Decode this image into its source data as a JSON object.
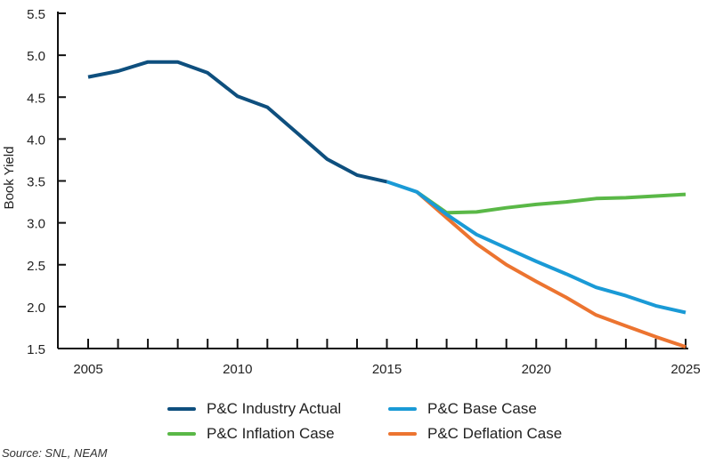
{
  "chart_data": {
    "type": "line",
    "title": "",
    "xlabel": "",
    "ylabel": "Book Yield",
    "xlim": [
      2005,
      2025
    ],
    "ylim": [
      1.5,
      5.5
    ],
    "x_ticks": [
      2005,
      2010,
      2015,
      2020,
      2025
    ],
    "x_tick_labels": [
      "2005",
      "2010",
      "2015",
      "2020",
      "2025"
    ],
    "y_ticks": [
      1.5,
      2.0,
      2.5,
      3.0,
      3.5,
      4.0,
      4.5,
      5.0,
      5.5
    ],
    "y_tick_labels": [
      "1.5",
      "2.0",
      "2.5",
      "3.0",
      "3.5",
      "4.0",
      "4.5",
      "5.0",
      "5.5"
    ],
    "grid": false,
    "series": [
      {
        "name": "P&C Industry Actual",
        "color": "#0e4f7e",
        "x": [
          2005,
          2006,
          2007,
          2008,
          2009,
          2010,
          2011,
          2012,
          2013,
          2014,
          2015
        ],
        "values": [
          4.74,
          4.81,
          4.92,
          4.92,
          4.79,
          4.51,
          4.38,
          4.07,
          3.76,
          3.57,
          3.49
        ]
      },
      {
        "name": "P&C Base Case",
        "color": "#1a9ad6",
        "x": [
          2015,
          2016,
          2017,
          2018,
          2019,
          2020,
          2021,
          2022,
          2023,
          2024,
          2025
        ],
        "values": [
          3.49,
          3.37,
          3.1,
          2.86,
          2.7,
          2.54,
          2.39,
          2.23,
          2.13,
          2.01,
          1.93
        ]
      },
      {
        "name": "P&C Inflation Case",
        "color": "#5ab847",
        "x": [
          2016,
          2017,
          2018,
          2019,
          2020,
          2021,
          2022,
          2023,
          2024,
          2025
        ],
        "values": [
          3.37,
          3.12,
          3.13,
          3.18,
          3.22,
          3.25,
          3.29,
          3.3,
          3.32,
          3.34
        ]
      },
      {
        "name": "P&C Deflation Case",
        "color": "#ec7430",
        "x": [
          2016,
          2017,
          2018,
          2019,
          2020,
          2021,
          2022,
          2023,
          2024,
          2025
        ],
        "values": [
          3.37,
          3.06,
          2.75,
          2.5,
          2.3,
          2.11,
          1.9,
          1.77,
          1.64,
          1.52
        ]
      }
    ],
    "legend": "bottom-center"
  },
  "source": "Source: SNL, NEAM"
}
